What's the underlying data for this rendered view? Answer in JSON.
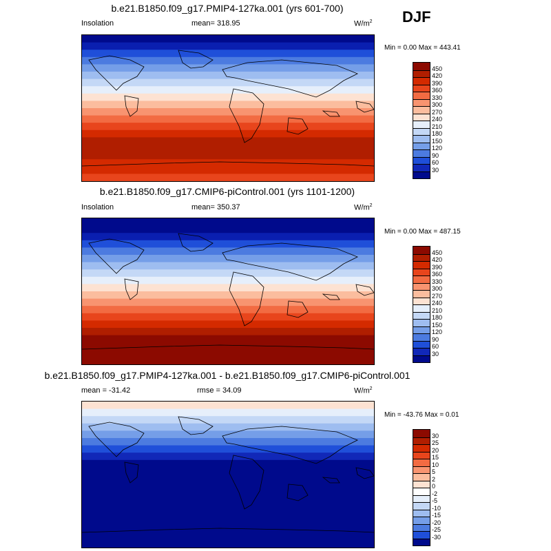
{
  "season": "DJF",
  "panels": [
    {
      "title": "b.e21.B1850.f09_g17.PMIP4-127ka.001 (yrs 601-700)",
      "left_label": "Insolation",
      "center_label": "mean= 318.95",
      "units": "W/m",
      "units_exp": "2",
      "minmax": "Min =   0.00 Max = 443.41",
      "colorbar_labels": [
        "450",
        "420",
        "390",
        "360",
        "330",
        "300",
        "270",
        "240",
        "210",
        "180",
        "150",
        "120",
        "90",
        "60",
        "30"
      ],
      "colorbar_colors": [
        "#8c0a00",
        "#b01e00",
        "#d42a00",
        "#e8451c",
        "#f26b42",
        "#f89470",
        "#fbbd9e",
        "#fde2d2",
        "#e6effb",
        "#c4d8f6",
        "#9ebdf0",
        "#759ee8",
        "#4c7be0",
        "#1f4fd9",
        "#1128b8",
        "#000a8c"
      ],
      "band_colors": [
        "#000a8c",
        "#0a1fb0",
        "#1f4fd9",
        "#4c7be0",
        "#759ee8",
        "#9ebdf0",
        "#c4d8f6",
        "#e6effb",
        "#fde2d2",
        "#fbbd9e",
        "#f89470",
        "#f26b42",
        "#e8451c",
        "#d42a00",
        "#b01e00",
        "#b01e00",
        "#b01e00",
        "#d42a00",
        "#d42a00",
        "#e8451c"
      ]
    },
    {
      "title": "b.e21.B1850.f09_g17.CMIP6-piControl.001 (yrs 1101-1200)",
      "left_label": "Insolation",
      "center_label": "mean= 350.37",
      "units": "W/m",
      "units_exp": "2",
      "minmax": "Min =   0.00 Max = 487.15",
      "colorbar_labels": [
        "450",
        "420",
        "390",
        "360",
        "330",
        "300",
        "270",
        "240",
        "210",
        "180",
        "150",
        "120",
        "90",
        "60",
        "30"
      ],
      "colorbar_colors": [
        "#8c0a00",
        "#b01e00",
        "#d42a00",
        "#e8451c",
        "#f26b42",
        "#f89470",
        "#fbbd9e",
        "#fde2d2",
        "#e6effb",
        "#c4d8f6",
        "#9ebdf0",
        "#759ee8",
        "#4c7be0",
        "#1f4fd9",
        "#1128b8",
        "#000a8c"
      ],
      "band_colors": [
        "#000a8c",
        "#000a8c",
        "#0a1fb0",
        "#1f4fd9",
        "#4c7be0",
        "#759ee8",
        "#9ebdf0",
        "#c4d8f6",
        "#e6effb",
        "#fde2d2",
        "#fbbd9e",
        "#f89470",
        "#f26b42",
        "#e8451c",
        "#d42a00",
        "#b01e00",
        "#8c0a00",
        "#8c0a00",
        "#8c0a00",
        "#8c0a00"
      ]
    },
    {
      "title": "b.e21.B1850.f09_g17.PMIP4-127ka.001 - b.e21.B1850.f09_g17.CMIP6-piControl.001",
      "left_label": "mean = -31.42",
      "center_label": "rmse =  34.09",
      "units": "W/m",
      "units_exp": "2",
      "minmax": "Min = -43.76 Max =   0.01",
      "colorbar_labels": [
        "30",
        "25",
        "20",
        "15",
        "10",
        "5",
        "2",
        "0",
        "-2",
        "-5",
        "-10",
        "-15",
        "-20",
        "-25",
        "-30"
      ],
      "colorbar_colors": [
        "#8c0a00",
        "#b01e00",
        "#d42a00",
        "#e8451c",
        "#f26b42",
        "#f89470",
        "#fbbd9e",
        "#fde2d2",
        "#ffffff",
        "#e6effb",
        "#c4d8f6",
        "#9ebdf0",
        "#759ee8",
        "#4c7be0",
        "#1f4fd9",
        "#000a8c"
      ],
      "band_colors": [
        "#fde2d2",
        "#e6effb",
        "#c4d8f6",
        "#9ebdf0",
        "#759ee8",
        "#4c7be0",
        "#1f4fd9",
        "#1128b8",
        "#000a8c",
        "#000a8c",
        "#000a8c",
        "#000a8c",
        "#000a8c",
        "#000a8c",
        "#000a8c",
        "#000a8c",
        "#000a8c",
        "#000a8c",
        "#000a8c",
        "#000a8c"
      ]
    }
  ]
}
